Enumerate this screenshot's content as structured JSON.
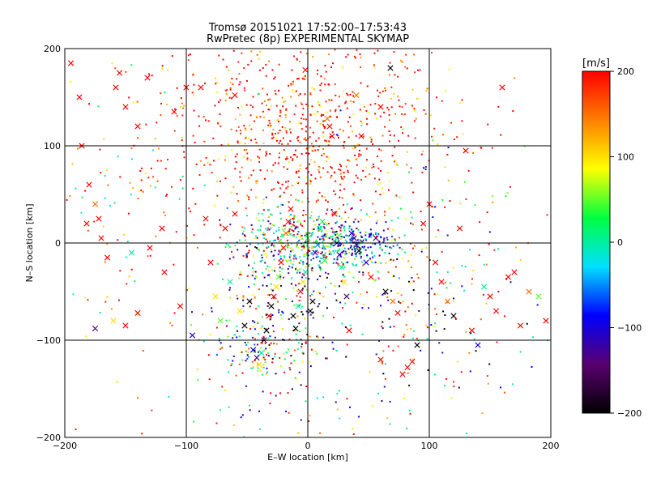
{
  "chart_data": {
    "type": "scatter",
    "title": "Tromsø 20151021 17:52:00–17:53:43",
    "subtitle": "RwPretec (8p) EXPERIMENTAL SKYMAP",
    "xlabel": "E–W location [km]",
    "ylabel": "N–S location [km]",
    "xlim": [
      -200,
      200
    ],
    "ylim": [
      -200,
      200
    ],
    "xticks": [
      -200,
      -100,
      0,
      100,
      200
    ],
    "yticks": [
      -200,
      -100,
      0,
      100,
      200
    ],
    "xtick_labels": [
      "−200",
      "−100",
      "0",
      "100",
      "200"
    ],
    "ytick_labels": [
      "−200",
      "−100",
      "0",
      "100",
      "200"
    ],
    "grid": true,
    "colorbar": {
      "unit_label": "[m/s]",
      "range": [
        -200,
        200
      ],
      "ticks": [
        200,
        100,
        0,
        -100,
        -200
      ],
      "tick_labels": [
        "200",
        "100",
        "0",
        "−100",
        "−200"
      ],
      "colormap": [
        "#000000",
        "#5a0070",
        "#0000ff",
        "#00e0ff",
        "#00ff40",
        "#ffff00",
        "#ff8000",
        "#ff0000"
      ]
    },
    "marker_types": [
      "dot",
      "cross"
    ],
    "series": [
      {
        "marker": "cross",
        "points": [
          [
            -195,
            185,
            200
          ],
          [
            -188,
            150,
            200
          ],
          [
            -186,
            100,
            200
          ],
          [
            -182,
            20,
            200
          ],
          [
            -180,
            60,
            200
          ],
          [
            -175,
            40,
            150
          ],
          [
            -172,
            25,
            200
          ],
          [
            -170,
            5,
            200
          ],
          [
            -165,
            -15,
            200
          ],
          [
            -160,
            -80,
            100
          ],
          [
            -158,
            160,
            200
          ],
          [
            -155,
            175,
            200
          ],
          [
            -150,
            -85,
            200
          ],
          [
            -145,
            -10,
            0
          ],
          [
            -140,
            -72,
            200
          ],
          [
            -175,
            -88,
            -150
          ],
          [
            -132,
            170,
            200
          ],
          [
            -120,
            15,
            200
          ],
          [
            -118,
            -30,
            200
          ],
          [
            -105,
            -65,
            200
          ],
          [
            -95,
            -95,
            -100
          ],
          [
            -88,
            160,
            200
          ],
          [
            -84,
            25,
            200
          ],
          [
            -80,
            -20,
            200
          ],
          [
            -76,
            -55,
            100
          ],
          [
            -72,
            -80,
            50
          ],
          [
            -68,
            15,
            200
          ],
          [
            -64,
            -40,
            0
          ],
          [
            -60,
            30,
            200
          ],
          [
            -56,
            -70,
            100
          ],
          [
            -52,
            -85,
            -200
          ],
          [
            -48,
            -60,
            -200
          ],
          [
            -45,
            -110,
            -100
          ],
          [
            -42,
            -118,
            -150
          ],
          [
            -40,
            -125,
            100
          ],
          [
            -38,
            -113,
            0
          ],
          [
            -36,
            -100,
            -150
          ],
          [
            -34,
            -90,
            -200
          ],
          [
            -32,
            -75,
            200
          ],
          [
            -30,
            -65,
            -200
          ],
          [
            -28,
            -55,
            200
          ],
          [
            -26,
            -45,
            100
          ],
          [
            -24,
            -35,
            50
          ],
          [
            -22,
            -20,
            200
          ],
          [
            -20,
            -5,
            200
          ],
          [
            -18,
            10,
            150
          ],
          [
            -16,
            22,
            200
          ],
          [
            -14,
            35,
            200
          ],
          [
            -12,
            -75,
            -200
          ],
          [
            -10,
            -88,
            -200
          ],
          [
            -8,
            -65,
            0
          ],
          [
            -6,
            -50,
            200
          ],
          [
            -4,
            -40,
            100
          ],
          [
            -2,
            -30,
            0
          ],
          [
            0,
            5,
            30
          ],
          [
            2,
            -70,
            -200
          ],
          [
            4,
            -60,
            -200
          ],
          [
            6,
            -10,
            -100
          ],
          [
            8,
            -2,
            -50
          ],
          [
            10,
            15,
            0
          ],
          [
            12,
            22,
            20
          ],
          [
            14,
            -18,
            30
          ],
          [
            16,
            128,
            150
          ],
          [
            18,
            120,
            200
          ],
          [
            20,
            110,
            200
          ],
          [
            22,
            30,
            200
          ],
          [
            24,
            0,
            -100
          ],
          [
            26,
            -12,
            -120
          ],
          [
            28,
            -25,
            0
          ],
          [
            30,
            -40,
            100
          ],
          [
            32,
            -55,
            -150
          ],
          [
            34,
            -90,
            200
          ],
          [
            36,
            10,
            -100
          ],
          [
            38,
            5,
            -120
          ],
          [
            40,
            -2,
            -150
          ],
          [
            42,
            -8,
            -200
          ],
          [
            44,
            110,
            200
          ],
          [
            48,
            -20,
            -100
          ],
          [
            52,
            -35,
            200
          ],
          [
            56,
            5,
            -150
          ],
          [
            60,
            -120,
            200
          ],
          [
            64,
            -50,
            -200
          ],
          [
            70,
            -60,
            150
          ],
          [
            74,
            -72,
            200
          ],
          [
            78,
            -135,
            200
          ],
          [
            82,
            -128,
            200
          ],
          [
            86,
            -122,
            200
          ],
          [
            90,
            -105,
            -200
          ],
          [
            95,
            20,
            200
          ],
          [
            100,
            40,
            200
          ],
          [
            105,
            -20,
            200
          ],
          [
            110,
            -40,
            200
          ],
          [
            115,
            -60,
            150
          ],
          [
            120,
            -75,
            -200
          ],
          [
            125,
            15,
            200
          ],
          [
            130,
            95,
            200
          ],
          [
            135,
            -90,
            200
          ],
          [
            140,
            -105,
            -100
          ],
          [
            145,
            -45,
            0
          ],
          [
            150,
            -55,
            200
          ],
          [
            155,
            -70,
            200
          ],
          [
            160,
            160,
            200
          ],
          [
            165,
            -35,
            200
          ],
          [
            170,
            -30,
            200
          ],
          [
            175,
            -85,
            200
          ],
          [
            182,
            -50,
            150
          ],
          [
            190,
            -55,
            50
          ],
          [
            196,
            -80,
            200
          ],
          [
            -100,
            160,
            200
          ],
          [
            -110,
            135,
            200
          ],
          [
            -140,
            120,
            200
          ],
          [
            -60,
            152,
            200
          ],
          [
            -2,
            178,
            200
          ],
          [
            40,
            152,
            150
          ],
          [
            60,
            140,
            200
          ],
          [
            68,
            180,
            -200
          ],
          [
            -130,
            -5,
            200
          ],
          [
            -150,
            140,
            200
          ]
        ]
      },
      {
        "marker": "dot",
        "clusters": [
          {
            "cx": 0,
            "cy": 0,
            "sx": 30,
            "sy": 18,
            "n": 520,
            "vals": [
              -150,
              -100,
              -50,
              0,
              0,
              30,
              50,
              100,
              200
            ]
          },
          {
            "cx": 45,
            "cy": 0,
            "sx": 15,
            "sy": 10,
            "n": 120,
            "vals": [
              -100,
              -80,
              -120,
              -60,
              0
            ]
          },
          {
            "cx": 0,
            "cy": 140,
            "sx": 65,
            "sy": 40,
            "n": 520,
            "vals": [
              200,
              200,
              200,
              200,
              180,
              150,
              100
            ]
          },
          {
            "cx": 0,
            "cy": 80,
            "sx": 40,
            "sy": 30,
            "n": 220,
            "vals": [
              200,
              200,
              200,
              150,
              100
            ]
          },
          {
            "cx": -25,
            "cy": -70,
            "sx": 25,
            "sy": 35,
            "n": 200,
            "vals": [
              -200,
              -150,
              -100,
              0,
              50,
              100,
              200
            ]
          },
          {
            "cx": -40,
            "cy": -115,
            "sx": 15,
            "sy": 10,
            "n": 70,
            "vals": [
              -100,
              -50,
              0,
              50,
              100,
              150,
              200
            ]
          },
          {
            "cx": 60,
            "cy": -60,
            "sx": 45,
            "sy": 40,
            "n": 160,
            "vals": [
              -200,
              -100,
              0,
              100,
              150,
              200
            ]
          },
          {
            "cx": -130,
            "cy": 30,
            "sx": 50,
            "sy": 90,
            "n": 160,
            "vals": [
              200,
              200,
              150,
              100,
              0
            ]
          },
          {
            "cx": 120,
            "cy": -60,
            "sx": 50,
            "sy": 60,
            "n": 90,
            "vals": [
              200,
              150,
              100,
              0,
              -100,
              -200
            ]
          },
          {
            "cx": 100,
            "cy": 60,
            "sx": 40,
            "sy": 50,
            "n": 60,
            "vals": [
              200,
              100,
              50,
              -100
            ]
          },
          {
            "cx": 0,
            "cy": -170,
            "sx": 60,
            "sy": 20,
            "n": 60,
            "vals": [
              200,
              100,
              0,
              -100
            ]
          }
        ]
      }
    ]
  }
}
